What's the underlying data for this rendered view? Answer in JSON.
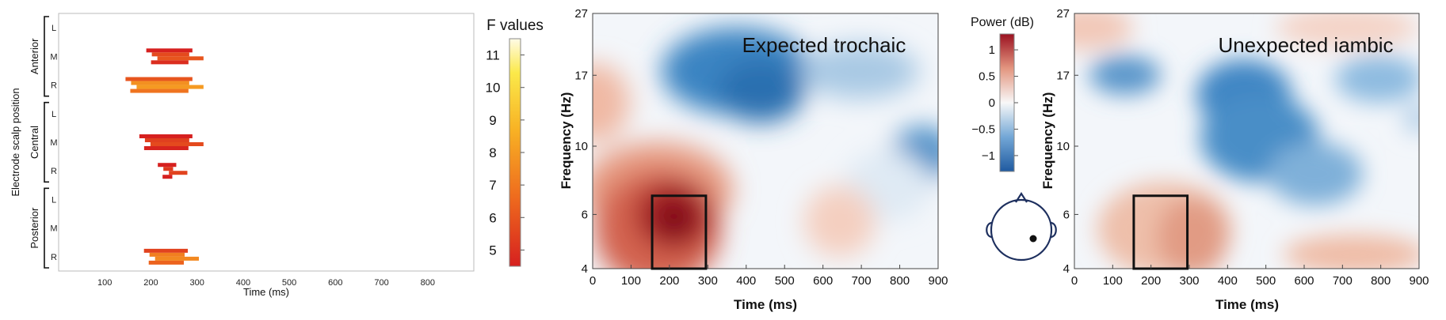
{
  "chart_data": [
    {
      "type": "heatmap",
      "name": "F values raster",
      "xlabel": "Time (ms)",
      "ylabel": "Electrode scalp position",
      "xlim": [
        0,
        900
      ],
      "xticks": [
        100,
        200,
        300,
        400,
        500,
        600,
        700,
        800
      ],
      "groups": [
        {
          "name": "Anterior",
          "rows": [
            "L",
            "M",
            "R"
          ]
        },
        {
          "name": "Central",
          "rows": [
            "L",
            "M",
            "R"
          ]
        },
        {
          "name": "Posterior",
          "rows": [
            "L",
            "M",
            "R"
          ]
        }
      ],
      "colorbar": {
        "label": "F values",
        "min": 4.5,
        "max": 11.5,
        "ticks": [
          5,
          6,
          7,
          8,
          9,
          10,
          11
        ],
        "colormap": "red-orange-yellow-white"
      },
      "significant_clusters": [
        {
          "group": "Anterior",
          "row": "M",
          "t_start": 190,
          "t_end": 290,
          "f_value": 5.5
        },
        {
          "group": "Anterior",
          "row": "R",
          "t_start": 145,
          "t_end": 290,
          "f_value": 7.5
        },
        {
          "group": "Central",
          "row": "M",
          "t_start": 175,
          "t_end": 290,
          "f_value": 5.2
        },
        {
          "group": "Central",
          "row": "R",
          "t_start": 215,
          "t_end": 255,
          "f_value": 5.0
        },
        {
          "group": "Posterior",
          "row": "R",
          "t_start": 185,
          "t_end": 280,
          "f_value": 7.0
        }
      ]
    },
    {
      "type": "heatmap",
      "title": "Expected trochaic",
      "xlabel": "Time (ms)",
      "ylabel": "Frequency (Hz)",
      "xlim": [
        0,
        900
      ],
      "xticks": [
        0,
        100,
        200,
        300,
        400,
        500,
        600,
        700,
        800,
        900
      ],
      "ylim": [
        4,
        27
      ],
      "yscale": "log",
      "yticks": [
        4,
        6,
        10,
        17,
        27
      ],
      "highlight_box": {
        "t_start": 155,
        "t_end": 295,
        "f_start": 4,
        "f_end": 6.9
      },
      "features": [
        {
          "kind": "increase",
          "t": 220,
          "f": 5.6,
          "value": 1.3
        },
        {
          "kind": "increase",
          "t": 30,
          "f": 15,
          "value": 0.5
        },
        {
          "kind": "decrease",
          "t": 330,
          "f": 19,
          "value": -1.0
        },
        {
          "kind": "decrease",
          "t": 850,
          "f": 10.5,
          "value": -0.9
        }
      ]
    },
    {
      "type": "heatmap",
      "title": "Unexpected iambic",
      "xlabel": "Time (ms)",
      "ylabel": "Frequency (Hz)",
      "xlim": [
        0,
        900
      ],
      "xticks": [
        0,
        100,
        200,
        300,
        400,
        500,
        600,
        700,
        800,
        900
      ],
      "ylim": [
        4,
        27
      ],
      "yscale": "log",
      "yticks": [
        4,
        6,
        10,
        17,
        27
      ],
      "highlight_box": {
        "t_start": 155,
        "t_end": 295,
        "f_start": 4,
        "f_end": 6.9
      },
      "features": [
        {
          "kind": "increase",
          "t": 240,
          "f": 5.3,
          "value": 0.6
        },
        {
          "kind": "increase",
          "t": 650,
          "f": 4.7,
          "value": 0.45
        },
        {
          "kind": "decrease",
          "t": 480,
          "f": 14,
          "value": -1.0
        },
        {
          "kind": "decrease",
          "t": 630,
          "f": 17,
          "value": -0.7
        }
      ]
    }
  ],
  "power_colorbar": {
    "label": "Power (dB)",
    "min": -1.3,
    "max": 1.3,
    "ticks": [
      "1",
      "0.5",
      "0",
      "−0.5",
      "−1"
    ],
    "colormap": "blue-white-red"
  },
  "head_icon": {
    "icon": "head-electrode-icon",
    "electrode": "right-posterior"
  }
}
